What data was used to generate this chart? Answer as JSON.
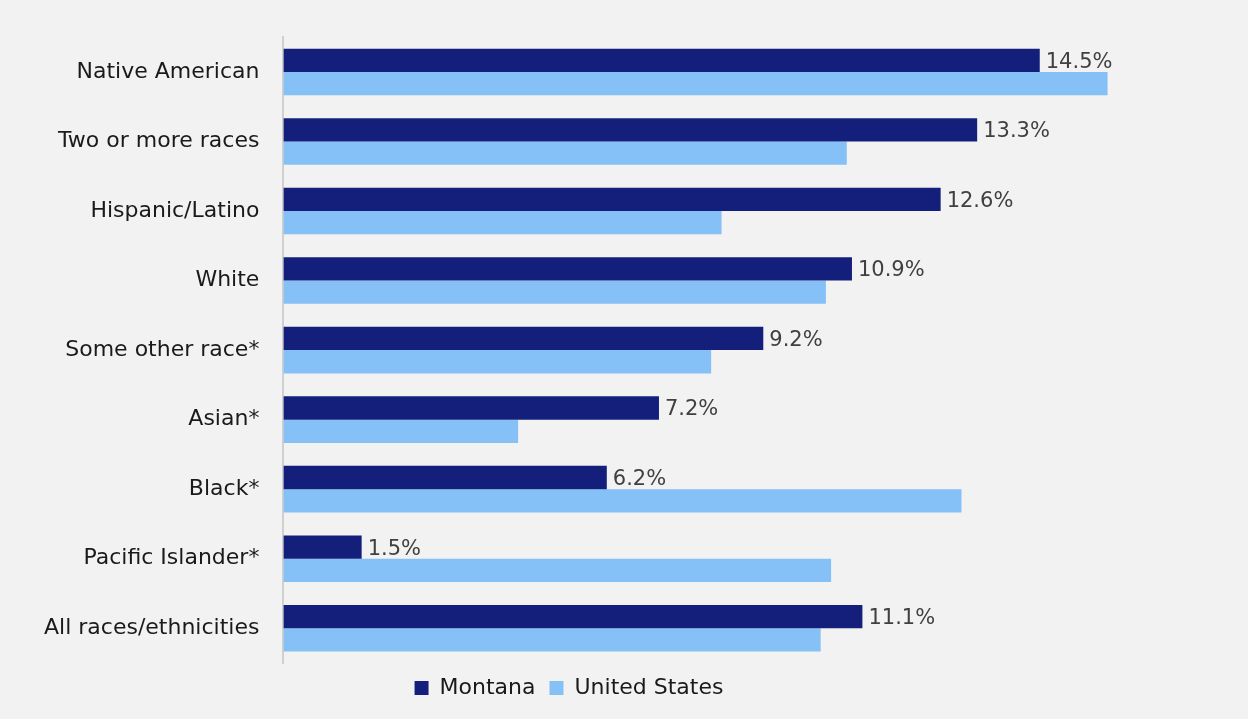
{
  "chart_data": {
    "type": "bar",
    "orientation": "horizontal",
    "categories": [
      "Native American",
      "Two or more races",
      "Hispanic/Latino",
      "White",
      "Some other race*",
      "Asian*",
      "Black*",
      "Pacific Islander*",
      "All races/ethnicities"
    ],
    "series": [
      {
        "name": "Montana",
        "color": "#141f7c",
        "values": [
          14.5,
          13.3,
          12.6,
          10.9,
          9.2,
          7.2,
          6.2,
          1.5,
          11.1
        ],
        "value_labels": [
          "14.5%",
          "13.3%",
          "12.6%",
          "10.9%",
          "9.2%",
          "7.2%",
          "6.2%",
          "1.5%",
          "11.1%"
        ]
      },
      {
        "name": "United States",
        "color": "#85c0f7",
        "values": [
          15.8,
          10.8,
          8.4,
          10.4,
          8.2,
          4.5,
          13.0,
          10.5,
          10.3
        ]
      }
    ],
    "tick_labels": "y",
    "legend": "bottom"
  }
}
